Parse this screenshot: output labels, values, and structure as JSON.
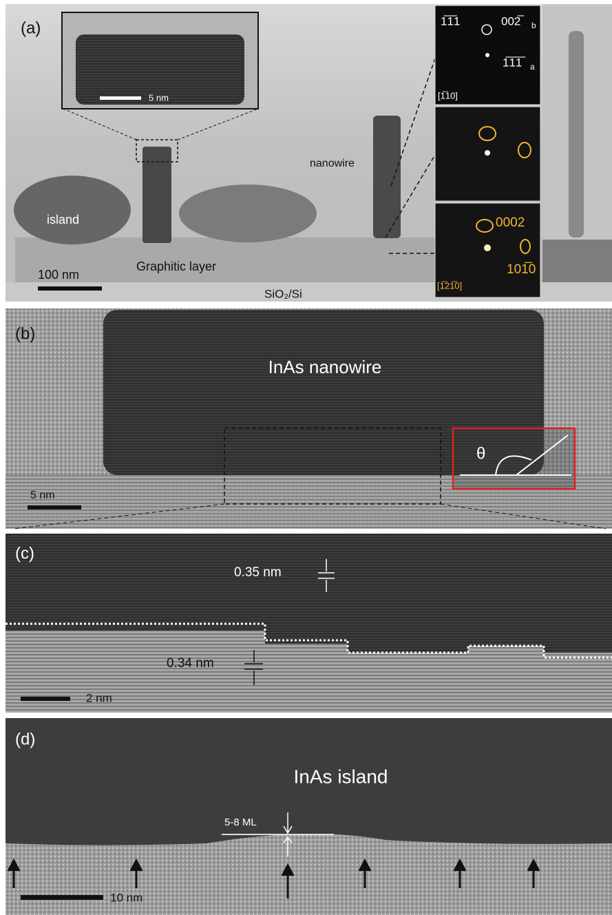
{
  "panels": [
    {
      "label": "(a)",
      "inset_scale": "5 nm",
      "nanowire": "nanowire",
      "island": "island",
      "scale": "100 nm",
      "layer": "Graphitic layer",
      "substrate": "SiO₂/Si",
      "fft": {
        "top": [
          "1̅1̅1",
          "002̅",
          "b",
          "1̅1̅1̅",
          "a",
          "[1̅10]"
        ],
        "bottom": [
          "0002",
          "101̅0",
          "[1̅21̅0]"
        ]
      }
    },
    {
      "label": "(b)",
      "title": "InAs nanowire",
      "scale": "5 nm",
      "angle": "θ"
    },
    {
      "label": "(c)",
      "spacing_top": "0.35 nm",
      "spacing_bottom": "0.34 nm",
      "scale": "2 nm"
    },
    {
      "label": "(d)",
      "title": "InAs island",
      "thickness": "5-8 ML",
      "scale": "10 nm"
    }
  ]
}
